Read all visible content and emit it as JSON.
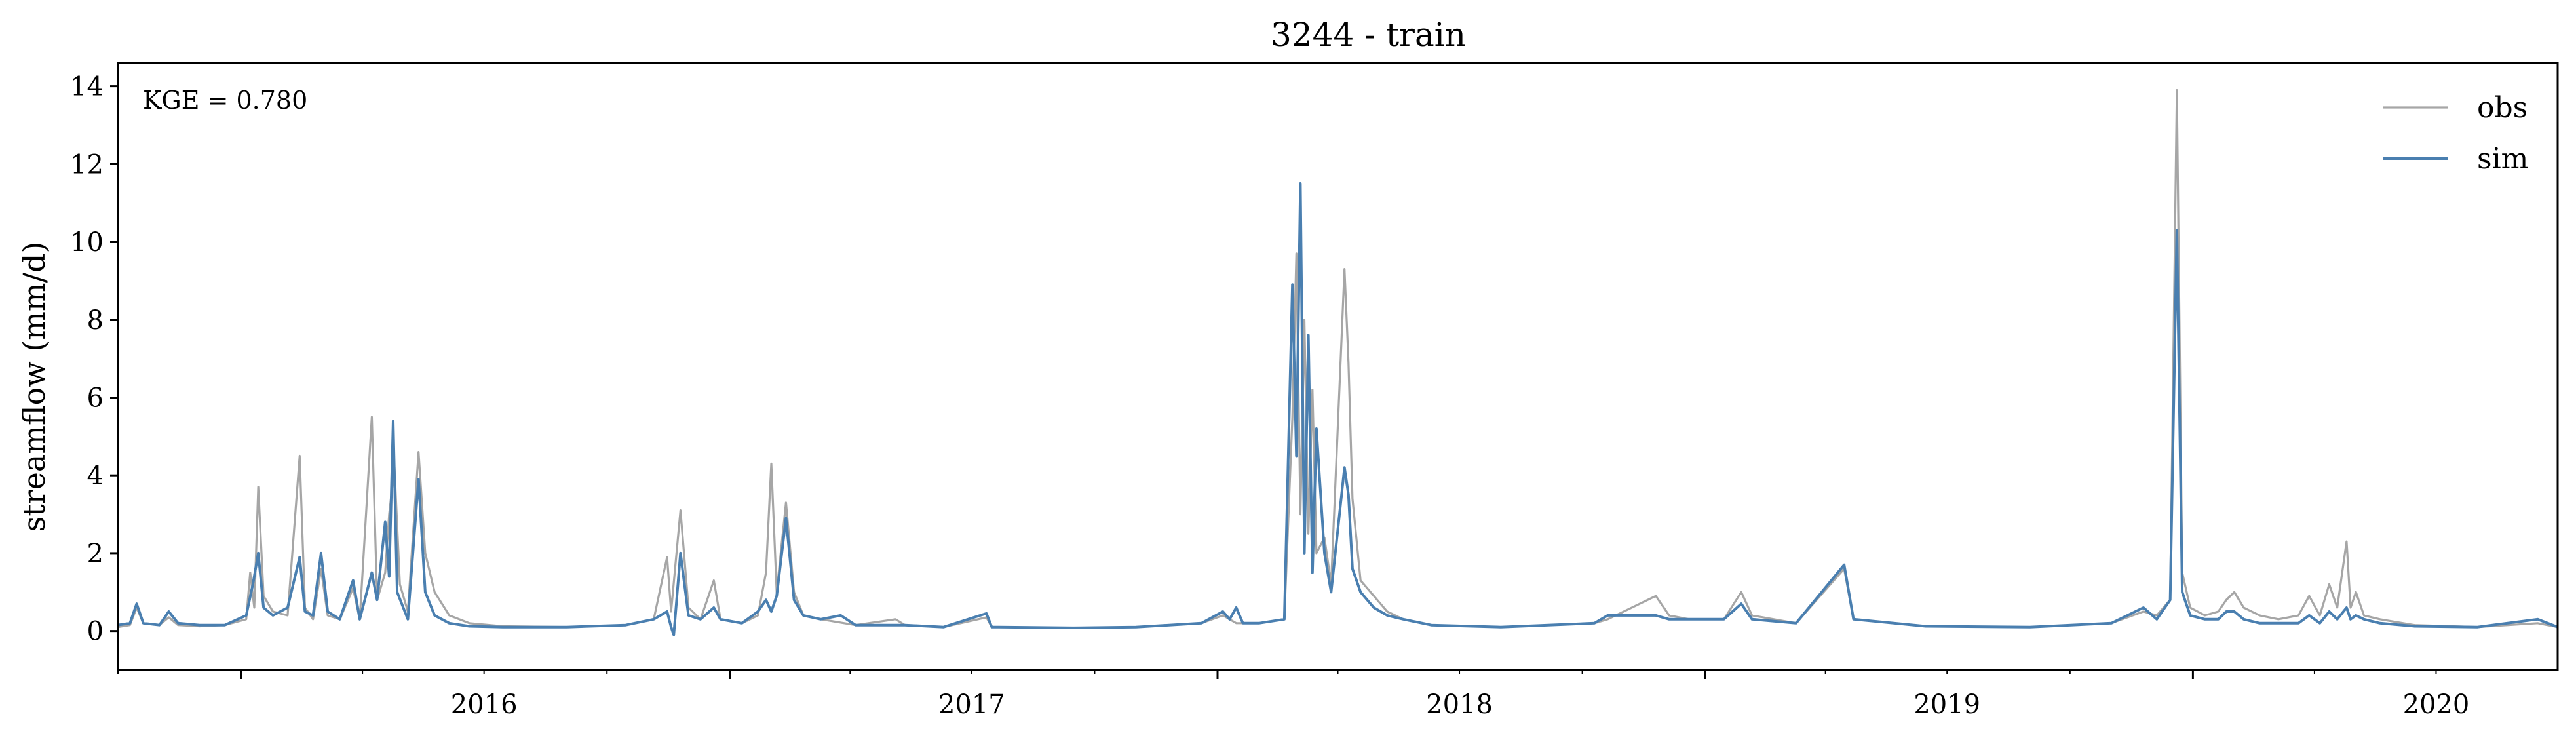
{
  "chart_data": {
    "type": "line",
    "title": "3244 - train",
    "xlabel": "",
    "ylabel": "streamflow (mm/d)",
    "annotation": "KGE = 0.780",
    "xlim": [
      "2015-10-01",
      "2020-09-30"
    ],
    "ylim": [
      -1,
      14.6
    ],
    "x_ticks": [
      "2016",
      "2017",
      "2018",
      "2019",
      "2020"
    ],
    "y_ticks": [
      "0",
      "2",
      "4",
      "6",
      "8",
      "10",
      "12",
      "14"
    ],
    "legend": {
      "position": "top-right"
    },
    "colors": {
      "obs": "#a6a6a6",
      "sim": "#4a7fb0"
    },
    "series": [
      {
        "name": "obs",
        "points": [
          [
            "2015-10-01",
            0.1
          ],
          [
            "2015-10-10",
            0.15
          ],
          [
            "2015-10-15",
            0.6
          ],
          [
            "2015-10-20",
            0.2
          ],
          [
            "2015-11-01",
            0.15
          ],
          [
            "2015-11-08",
            0.35
          ],
          [
            "2015-11-15",
            0.15
          ],
          [
            "2015-12-01",
            0.12
          ],
          [
            "2015-12-20",
            0.15
          ],
          [
            "2016-01-05",
            0.3
          ],
          [
            "2016-01-08",
            1.5
          ],
          [
            "2016-01-11",
            0.6
          ],
          [
            "2016-01-14",
            3.7
          ],
          [
            "2016-01-18",
            0.9
          ],
          [
            "2016-01-25",
            0.5
          ],
          [
            "2016-02-05",
            0.4
          ],
          [
            "2016-02-14",
            4.5
          ],
          [
            "2016-02-18",
            0.6
          ],
          [
            "2016-02-24",
            0.3
          ],
          [
            "2016-03-01",
            1.6
          ],
          [
            "2016-03-06",
            0.4
          ],
          [
            "2016-03-15",
            0.3
          ],
          [
            "2016-03-25",
            1.1
          ],
          [
            "2016-03-30",
            0.3
          ],
          [
            "2016-04-08",
            5.5
          ],
          [
            "2016-04-12",
            0.8
          ],
          [
            "2016-04-18",
            1.5
          ],
          [
            "2016-04-21",
            3.0
          ],
          [
            "2016-04-25",
            4.2
          ],
          [
            "2016-04-29",
            1.2
          ],
          [
            "2016-05-05",
            0.5
          ],
          [
            "2016-05-13",
            4.6
          ],
          [
            "2016-05-18",
            2.0
          ],
          [
            "2016-05-25",
            1.0
          ],
          [
            "2016-06-05",
            0.4
          ],
          [
            "2016-06-20",
            0.2
          ],
          [
            "2016-07-15",
            0.12
          ],
          [
            "2016-09-01",
            0.1
          ],
          [
            "2016-10-15",
            0.15
          ],
          [
            "2016-11-05",
            0.3
          ],
          [
            "2016-11-15",
            1.9
          ],
          [
            "2016-11-18",
            0.5
          ],
          [
            "2016-11-25",
            3.1
          ],
          [
            "2016-12-01",
            0.6
          ],
          [
            "2016-12-10",
            0.3
          ],
          [
            "2016-12-20",
            1.3
          ],
          [
            "2016-12-25",
            0.3
          ],
          [
            "2017-01-10",
            0.2
          ],
          [
            "2017-01-22",
            0.4
          ],
          [
            "2017-01-28",
            1.5
          ],
          [
            "2017-02-01",
            4.3
          ],
          [
            "2017-02-05",
            1.0
          ],
          [
            "2017-02-12",
            3.3
          ],
          [
            "2017-02-18",
            1.0
          ],
          [
            "2017-02-25",
            0.4
          ],
          [
            "2017-03-10",
            0.3
          ],
          [
            "2017-04-05",
            0.15
          ],
          [
            "2017-05-05",
            0.3
          ],
          [
            "2017-05-12",
            0.15
          ],
          [
            "2017-06-10",
            0.1
          ],
          [
            "2017-07-12",
            0.35
          ],
          [
            "2017-07-16",
            0.1
          ],
          [
            "2017-09-15",
            0.08
          ],
          [
            "2017-11-01",
            0.1
          ],
          [
            "2017-12-20",
            0.2
          ],
          [
            "2018-01-05",
            0.4
          ],
          [
            "2018-01-15",
            0.2
          ],
          [
            "2018-02-01",
            0.2
          ],
          [
            "2018-02-20",
            0.3
          ],
          [
            "2018-02-26",
            5.5
          ],
          [
            "2018-03-01",
            9.7
          ],
          [
            "2018-03-04",
            3.0
          ],
          [
            "2018-03-07",
            8.0
          ],
          [
            "2018-03-10",
            2.5
          ],
          [
            "2018-03-13",
            6.2
          ],
          [
            "2018-03-16",
            2.0
          ],
          [
            "2018-03-22",
            2.4
          ],
          [
            "2018-03-27",
            1.2
          ],
          [
            "2018-04-06",
            9.3
          ],
          [
            "2018-04-09",
            6.9
          ],
          [
            "2018-04-12",
            3.4
          ],
          [
            "2018-04-18",
            1.3
          ],
          [
            "2018-04-28",
            0.9
          ],
          [
            "2018-05-08",
            0.5
          ],
          [
            "2018-05-20",
            0.3
          ],
          [
            "2018-06-10",
            0.15
          ],
          [
            "2018-08-01",
            0.1
          ],
          [
            "2018-10-10",
            0.2
          ],
          [
            "2018-10-20",
            0.3
          ],
          [
            "2018-11-25",
            0.9
          ],
          [
            "2018-12-05",
            0.4
          ],
          [
            "2018-12-20",
            0.3
          ],
          [
            "2019-01-15",
            0.3
          ],
          [
            "2019-01-28",
            1.0
          ],
          [
            "2019-02-05",
            0.4
          ],
          [
            "2019-03-10",
            0.2
          ],
          [
            "2019-04-15",
            1.6
          ],
          [
            "2019-04-22",
            0.3
          ],
          [
            "2019-06-15",
            0.12
          ],
          [
            "2019-09-01",
            0.1
          ],
          [
            "2019-11-01",
            0.2
          ],
          [
            "2019-11-25",
            0.5
          ],
          [
            "2019-12-05",
            0.4
          ],
          [
            "2019-12-15",
            0.8
          ],
          [
            "2019-12-20",
            13.9
          ],
          [
            "2019-12-24",
            1.5
          ],
          [
            "2019-12-30",
            0.6
          ],
          [
            "2020-01-10",
            0.4
          ],
          [
            "2020-01-20",
            0.5
          ],
          [
            "2020-01-26",
            0.8
          ],
          [
            "2020-02-01",
            1.0
          ],
          [
            "2020-02-08",
            0.6
          ],
          [
            "2020-02-20",
            0.4
          ],
          [
            "2020-03-05",
            0.3
          ],
          [
            "2020-03-20",
            0.4
          ],
          [
            "2020-03-28",
            0.9
          ],
          [
            "2020-04-05",
            0.4
          ],
          [
            "2020-04-12",
            1.2
          ],
          [
            "2020-04-18",
            0.6
          ],
          [
            "2020-04-25",
            2.3
          ],
          [
            "2020-04-28",
            0.6
          ],
          [
            "2020-05-02",
            1.0
          ],
          [
            "2020-05-08",
            0.4
          ],
          [
            "2020-05-20",
            0.3
          ],
          [
            "2020-06-15",
            0.15
          ],
          [
            "2020-08-01",
            0.1
          ],
          [
            "2020-09-15",
            0.2
          ],
          [
            "2020-09-30",
            0.1
          ]
        ]
      },
      {
        "name": "sim",
        "points": [
          [
            "2015-10-01",
            0.15
          ],
          [
            "2015-10-10",
            0.2
          ],
          [
            "2015-10-15",
            0.7
          ],
          [
            "2015-10-20",
            0.2
          ],
          [
            "2015-11-01",
            0.15
          ],
          [
            "2015-11-08",
            0.5
          ],
          [
            "2015-11-15",
            0.2
          ],
          [
            "2015-12-01",
            0.15
          ],
          [
            "2015-12-20",
            0.15
          ],
          [
            "2016-01-05",
            0.4
          ],
          [
            "2016-01-10",
            1.2
          ],
          [
            "2016-01-14",
            2.0
          ],
          [
            "2016-01-18",
            0.6
          ],
          [
            "2016-01-25",
            0.4
          ],
          [
            "2016-02-05",
            0.6
          ],
          [
            "2016-02-14",
            1.9
          ],
          [
            "2016-02-18",
            0.5
          ],
          [
            "2016-02-24",
            0.4
          ],
          [
            "2016-03-01",
            2.0
          ],
          [
            "2016-03-06",
            0.5
          ],
          [
            "2016-03-15",
            0.3
          ],
          [
            "2016-03-25",
            1.3
          ],
          [
            "2016-03-30",
            0.3
          ],
          [
            "2016-04-08",
            1.5
          ],
          [
            "2016-04-12",
            0.8
          ],
          [
            "2016-04-18",
            2.8
          ],
          [
            "2016-04-21",
            1.4
          ],
          [
            "2016-04-24",
            5.4
          ],
          [
            "2016-04-27",
            1.0
          ],
          [
            "2016-05-05",
            0.3
          ],
          [
            "2016-05-13",
            3.9
          ],
          [
            "2016-05-18",
            1.0
          ],
          [
            "2016-05-25",
            0.4
          ],
          [
            "2016-06-05",
            0.2
          ],
          [
            "2016-06-20",
            0.12
          ],
          [
            "2016-07-15",
            0.1
          ],
          [
            "2016-09-01",
            0.1
          ],
          [
            "2016-10-15",
            0.15
          ],
          [
            "2016-11-05",
            0.3
          ],
          [
            "2016-11-15",
            0.5
          ],
          [
            "2016-11-18",
            0.1
          ],
          [
            "2016-11-20",
            -0.1
          ],
          [
            "2016-11-25",
            2.0
          ],
          [
            "2016-12-01",
            0.4
          ],
          [
            "2016-12-10",
            0.3
          ],
          [
            "2016-12-20",
            0.6
          ],
          [
            "2016-12-25",
            0.3
          ],
          [
            "2017-01-10",
            0.2
          ],
          [
            "2017-01-22",
            0.5
          ],
          [
            "2017-01-28",
            0.8
          ],
          [
            "2017-02-01",
            0.5
          ],
          [
            "2017-02-05",
            0.9
          ],
          [
            "2017-02-12",
            2.9
          ],
          [
            "2017-02-18",
            0.8
          ],
          [
            "2017-02-25",
            0.4
          ],
          [
            "2017-03-10",
            0.3
          ],
          [
            "2017-03-25",
            0.4
          ],
          [
            "2017-04-05",
            0.15
          ],
          [
            "2017-05-12",
            0.15
          ],
          [
            "2017-06-10",
            0.1
          ],
          [
            "2017-07-12",
            0.45
          ],
          [
            "2017-07-16",
            0.1
          ],
          [
            "2017-09-15",
            0.08
          ],
          [
            "2017-11-01",
            0.1
          ],
          [
            "2017-12-20",
            0.2
          ],
          [
            "2018-01-05",
            0.5
          ],
          [
            "2018-01-10",
            0.3
          ],
          [
            "2018-01-15",
            0.6
          ],
          [
            "2018-01-20",
            0.2
          ],
          [
            "2018-02-01",
            0.2
          ],
          [
            "2018-02-20",
            0.3
          ],
          [
            "2018-02-26",
            8.9
          ],
          [
            "2018-03-01",
            4.5
          ],
          [
            "2018-03-04",
            11.5
          ],
          [
            "2018-03-07",
            2.0
          ],
          [
            "2018-03-10",
            7.6
          ],
          [
            "2018-03-13",
            1.5
          ],
          [
            "2018-03-16",
            5.2
          ],
          [
            "2018-03-22",
            2.0
          ],
          [
            "2018-03-27",
            1.0
          ],
          [
            "2018-04-06",
            4.2
          ],
          [
            "2018-04-09",
            3.5
          ],
          [
            "2018-04-12",
            1.6
          ],
          [
            "2018-04-18",
            1.0
          ],
          [
            "2018-04-28",
            0.6
          ],
          [
            "2018-05-08",
            0.4
          ],
          [
            "2018-05-20",
            0.3
          ],
          [
            "2018-06-10",
            0.15
          ],
          [
            "2018-08-01",
            0.1
          ],
          [
            "2018-10-10",
            0.2
          ],
          [
            "2018-10-20",
            0.4
          ],
          [
            "2018-11-25",
            0.4
          ],
          [
            "2018-12-05",
            0.3
          ],
          [
            "2018-12-20",
            0.3
          ],
          [
            "2019-01-15",
            0.3
          ],
          [
            "2019-01-28",
            0.7
          ],
          [
            "2019-02-05",
            0.3
          ],
          [
            "2019-03-10",
            0.2
          ],
          [
            "2019-04-15",
            1.7
          ],
          [
            "2019-04-22",
            0.3
          ],
          [
            "2019-06-15",
            0.12
          ],
          [
            "2019-09-01",
            0.1
          ],
          [
            "2019-11-01",
            0.2
          ],
          [
            "2019-11-25",
            0.6
          ],
          [
            "2019-12-05",
            0.3
          ],
          [
            "2019-12-15",
            0.8
          ],
          [
            "2019-12-20",
            10.3
          ],
          [
            "2019-12-24",
            1.0
          ],
          [
            "2019-12-30",
            0.4
          ],
          [
            "2020-01-10",
            0.3
          ],
          [
            "2020-01-20",
            0.3
          ],
          [
            "2020-01-26",
            0.5
          ],
          [
            "2020-02-01",
            0.5
          ],
          [
            "2020-02-08",
            0.3
          ],
          [
            "2020-02-20",
            0.2
          ],
          [
            "2020-03-05",
            0.2
          ],
          [
            "2020-03-20",
            0.2
          ],
          [
            "2020-03-28",
            0.4
          ],
          [
            "2020-04-05",
            0.2
          ],
          [
            "2020-04-12",
            0.5
          ],
          [
            "2020-04-18",
            0.3
          ],
          [
            "2020-04-25",
            0.6
          ],
          [
            "2020-04-28",
            0.3
          ],
          [
            "2020-05-02",
            0.4
          ],
          [
            "2020-05-08",
            0.3
          ],
          [
            "2020-05-20",
            0.2
          ],
          [
            "2020-06-15",
            0.12
          ],
          [
            "2020-08-01",
            0.1
          ],
          [
            "2020-09-15",
            0.3
          ],
          [
            "2020-09-30",
            0.1
          ]
        ]
      }
    ]
  }
}
